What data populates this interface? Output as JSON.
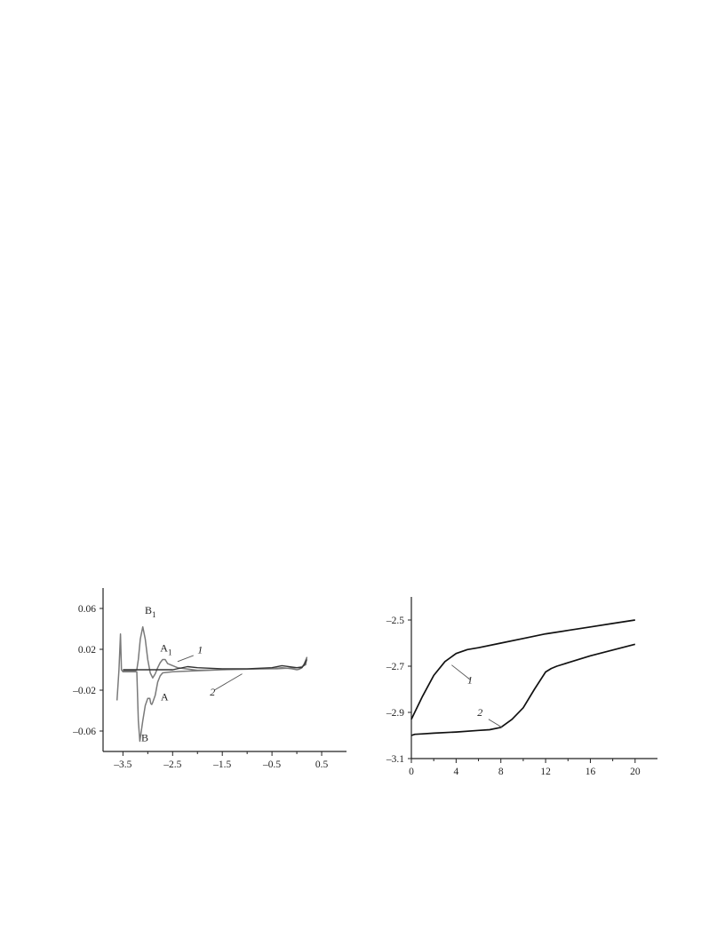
{
  "chart_data": [
    {
      "type": "line",
      "title": "",
      "xlabel": "",
      "ylabel": "",
      "xlim": [
        -3.9,
        1.0
      ],
      "ylim": [
        -0.08,
        0.08
      ],
      "x_ticks": [
        -3.5,
        -2.5,
        -1.5,
        -0.5,
        0.5
      ],
      "x_tick_labels": [
        "–3.5",
        "–2.5",
        "–1.5",
        "–0.5",
        "0.5"
      ],
      "y_ticks": [
        0.06,
        0.02,
        -0.02,
        -0.06
      ],
      "y_tick_labels": [
        "0.06",
        "0.02",
        "–0.02",
        "–0.06"
      ],
      "grid": false,
      "series": [
        {
          "color": "#7a7a7a",
          "x": [
            -3.62,
            -3.58,
            -3.55,
            -3.53,
            -3.5,
            -3.4,
            -3.3,
            -3.22,
            -3.19,
            -3.16,
            -3.1,
            -3.05,
            -3.0,
            -2.96,
            -2.94,
            -2.92,
            -2.9,
            -2.85,
            -2.8,
            -2.75,
            -2.7,
            -2.6,
            -2.5,
            -2.0,
            -1.5,
            -1.0,
            -0.5,
            -0.3,
            -0.2,
            -0.1,
            0.0,
            0.05,
            0.1,
            0.15,
            0.2,
            0.18,
            0.1,
            0.0,
            -0.2,
            -0.4,
            -0.6,
            -1.0,
            -1.5,
            -2.0,
            -2.4,
            -2.6,
            -2.65,
            -2.7,
            -2.75,
            -2.8,
            -2.85,
            -2.9,
            -2.95,
            -3.0,
            -3.05,
            -3.1,
            -3.15,
            -3.19,
            -3.22,
            -3.25,
            -3.3,
            -3.4,
            -3.5
          ],
          "y": [
            -0.03,
            0.0,
            0.035,
            0.0,
            -0.002,
            -0.002,
            -0.002,
            -0.002,
            -0.05,
            -0.07,
            -0.05,
            -0.035,
            -0.028,
            -0.028,
            -0.033,
            -0.034,
            -0.032,
            -0.025,
            -0.012,
            -0.006,
            -0.003,
            -0.0025,
            -0.002,
            -0.001,
            0.0,
            0.0005,
            0.001,
            0.002,
            0.0015,
            0.001,
            0.0,
            0.0005,
            0.002,
            0.006,
            0.012,
            0.005,
            0.003,
            0.002,
            0.0015,
            0.001,
            0.001,
            0.0005,
            0.0,
            -0.0005,
            0.002,
            0.006,
            0.01,
            0.01,
            0.007,
            0.002,
            -0.004,
            -0.008,
            -0.003,
            0.01,
            0.03,
            0.042,
            0.03,
            0.01,
            0.0,
            -0.001,
            -0.001,
            -0.001,
            -0.001
          ]
        },
        {
          "color": "#333333",
          "x": [
            -3.5,
            -3.0,
            -2.5,
            -2.2,
            -2.0,
            -1.5,
            -1.0,
            -0.5,
            -0.3,
            0.0,
            0.1,
            0.15,
            0.2
          ],
          "y": [
            0.0,
            0.0,
            0.0,
            0.003,
            0.002,
            0.001,
            0.001,
            0.002,
            0.004,
            0.002,
            0.002,
            0.005,
            0.01
          ]
        }
      ],
      "annotations": [
        {
          "text": "B",
          "sub": "1"
        },
        {
          "text": "A",
          "sub": "1"
        },
        {
          "text": "A",
          "sub": ""
        },
        {
          "text": "B",
          "sub": ""
        },
        {
          "text": "1",
          "sub": ""
        },
        {
          "text": "2",
          "sub": ""
        }
      ]
    },
    {
      "type": "line",
      "title": "",
      "xlabel": "",
      "ylabel": "",
      "xlim": [
        0,
        22
      ],
      "ylim": [
        -3.1,
        -2.4
      ],
      "x_ticks": [
        0,
        4,
        8,
        12,
        16,
        20
      ],
      "x_tick_labels": [
        "0",
        "4",
        "8",
        "12",
        "16",
        "20"
      ],
      "y_ticks": [
        -2.5,
        -2.7,
        -2.9,
        -3.1
      ],
      "y_tick_labels": [
        "–2.5",
        "–2.7",
        "–2.9",
        "–3.1"
      ],
      "grid": false,
      "series": [
        {
          "color": "#111111",
          "x": [
            0,
            0.5,
            1,
            2,
            3,
            4,
            5,
            6,
            8,
            10,
            12,
            14,
            16,
            18,
            20
          ],
          "y": [
            -2.93,
            -2.88,
            -2.83,
            -2.74,
            -2.68,
            -2.645,
            -2.628,
            -2.62,
            -2.6,
            -2.58,
            -2.56,
            -2.545,
            -2.53,
            -2.515,
            -2.5
          ]
        },
        {
          "color": "#111111",
          "x": [
            0,
            0.3,
            1,
            2,
            4,
            6,
            7,
            8,
            9,
            10,
            11,
            12,
            12.5,
            13,
            14,
            16,
            18,
            20
          ],
          "y": [
            -3.0,
            -2.995,
            -2.993,
            -2.99,
            -2.985,
            -2.978,
            -2.975,
            -2.965,
            -2.93,
            -2.88,
            -2.8,
            -2.725,
            -2.71,
            -2.7,
            -2.685,
            -2.655,
            -2.63,
            -2.605
          ]
        }
      ],
      "annotations": [
        {
          "text": "1"
        },
        {
          "text": "2"
        }
      ]
    }
  ]
}
